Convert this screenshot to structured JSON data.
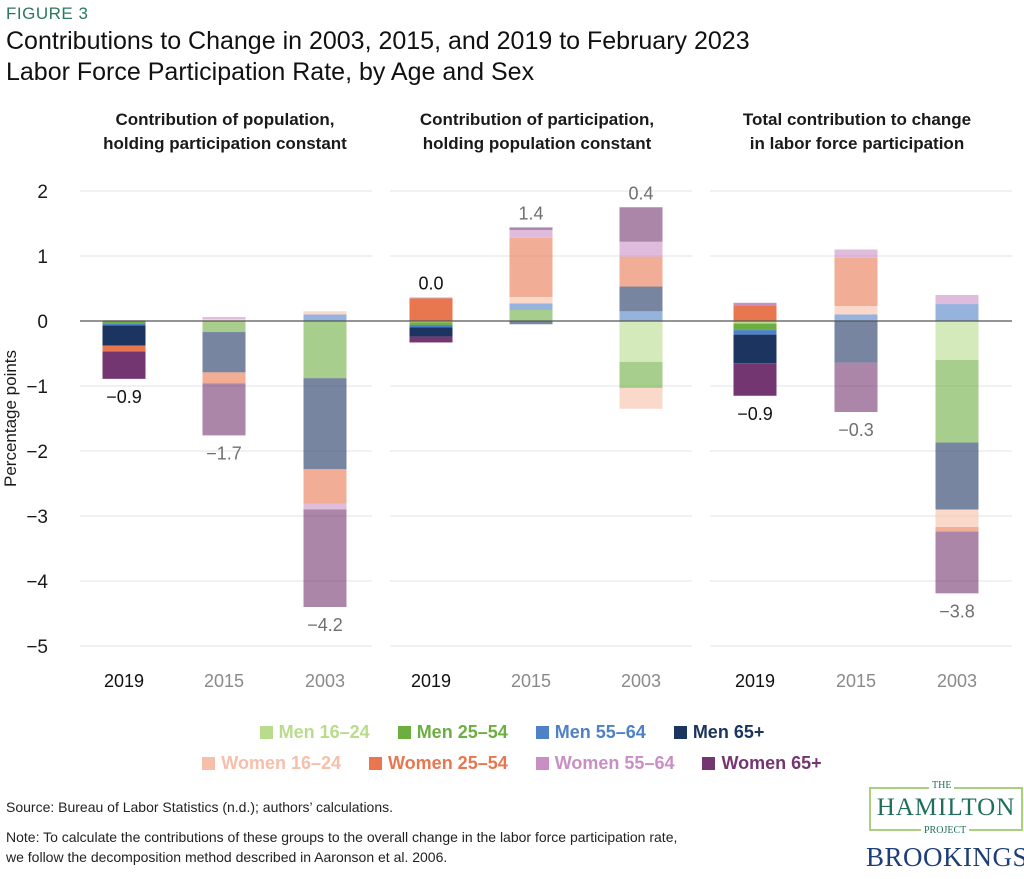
{
  "figure_label": "FIGURE 3",
  "title_line1": "Contributions to Change in 2003, 2015, and 2019 to February 2023",
  "title_line2": "Labor Force Participation Rate, by Age and Sex",
  "source": "Source: Bureau of Labor Statistics (n.d.); authors’ calculations.",
  "note_line1": "Note: To calculate the contributions of these groups to the overall change in the labor force participation rate,",
  "note_line2": "we follow the decomposition method described in Aaronson et al. 2006.",
  "logos": {
    "hamilton_the": "THE",
    "hamilton": "HAMILTON",
    "hamilton_project": "PROJECT",
    "brookings": "BROOKINGS"
  },
  "chart_data": {
    "type": "bar",
    "stacked": true,
    "ylabel": "Percentage points",
    "ylim": [
      -5,
      2
    ],
    "yticks": [
      2,
      1,
      0,
      -1,
      -2,
      -3,
      -4,
      -5
    ],
    "grid": true,
    "legend_placement": "bottom",
    "categories": [
      "2019",
      "2015",
      "2003"
    ],
    "faded_categories": [
      "2015",
      "2003"
    ],
    "series": [
      {
        "name": "Men 16–24",
        "color": "#b9dc8c"
      },
      {
        "name": "Men 25–54",
        "color": "#6cae3f"
      },
      {
        "name": "Men 55–64",
        "color": "#4f81c6"
      },
      {
        "name": "Men 65+",
        "color": "#1c3460"
      },
      {
        "name": "Women 16–24",
        "color": "#f6bfa9"
      },
      {
        "name": "Women 25–54",
        "color": "#e8764f"
      },
      {
        "name": "Women 55–64",
        "color": "#c98fc4"
      },
      {
        "name": "Women 65+",
        "color": "#733670"
      }
    ],
    "panels": [
      {
        "title_line1": "Contribution of population,",
        "title_line2": "holding participation constant",
        "totals": [
          "-0.9",
          "-1.7",
          "-4.2"
        ],
        "values": [
          [
            0,
            0,
            0
          ],
          [
            -0.04,
            -0.17,
            -0.88
          ],
          [
            -0.03,
            0,
            0.1
          ],
          [
            -0.31,
            -0.62,
            -1.4
          ],
          [
            0,
            0.03,
            0.05
          ],
          [
            -0.09,
            -0.17,
            -0.53
          ],
          [
            0.01,
            0.03,
            -0.09
          ],
          [
            -0.42,
            -0.8,
            -1.5
          ]
        ]
      },
      {
        "title_line1": "Contribution of participation,",
        "title_line2": "holding population constant",
        "totals": [
          "0.0",
          "1.4",
          "0.4"
        ],
        "values": [
          [
            -0.02,
            0,
            -0.63
          ],
          [
            -0.04,
            0.17,
            -0.4
          ],
          [
            -0.04,
            0.1,
            0.15
          ],
          [
            -0.14,
            -0.05,
            0.38
          ],
          [
            0,
            0.1,
            -0.32
          ],
          [
            0.35,
            0.91,
            0.46
          ],
          [
            0.01,
            0.12,
            0.23
          ],
          [
            -0.09,
            0.04,
            0.53
          ]
        ]
      },
      {
        "title_line1": "Total contribution to change",
        "title_line2": "in labor force participation",
        "totals": [
          "-0.9",
          "-0.3",
          "-3.8"
        ],
        "values": [
          [
            -0.04,
            0,
            -0.6
          ],
          [
            -0.1,
            0,
            -1.27
          ],
          [
            -0.07,
            0.1,
            0.26
          ],
          [
            -0.44,
            -0.64,
            -1.03
          ],
          [
            0,
            0.13,
            -0.27
          ],
          [
            0.24,
            0.74,
            -0.07
          ],
          [
            0.04,
            0.13,
            0.14
          ],
          [
            -0.5,
            -0.76,
            -0.95
          ]
        ]
      }
    ]
  }
}
